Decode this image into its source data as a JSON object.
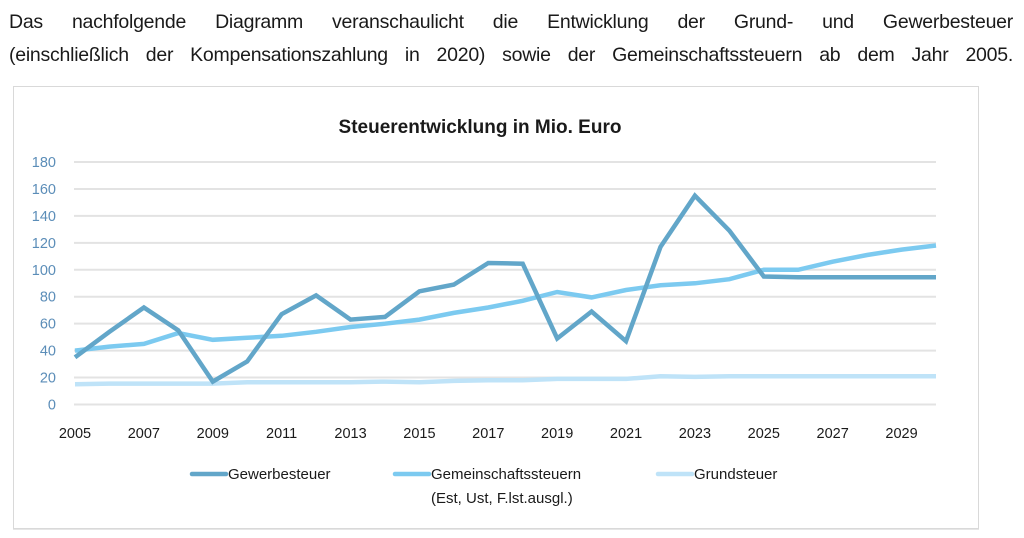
{
  "intro": {
    "line1": "Das nachfolgende Diagramm veranschaulicht die Entwicklung der Grund- und Gewerbesteuer",
    "line2": "(einschließlich der Kompensationszahlung in 2020) sowie der Gemeinschaftssteuern ab dem Jahr 2005."
  },
  "chart_data": {
    "type": "line",
    "title": "Steuerentwicklung in Mio. Euro",
    "xlabel": "",
    "ylabel": "",
    "ylim": [
      0,
      180
    ],
    "yticks": [
      0,
      20,
      40,
      60,
      80,
      100,
      120,
      140,
      160,
      180
    ],
    "xlim": [
      2005,
      2030
    ],
    "xtick_labels": [
      "2005",
      "2007",
      "2009",
      "2011",
      "2013",
      "2015",
      "2017",
      "2019",
      "2021",
      "2023",
      "2025",
      "2027",
      "2029"
    ],
    "grid": true,
    "legend_position": "bottom",
    "x": [
      2005,
      2006,
      2007,
      2008,
      2009,
      2010,
      2011,
      2012,
      2013,
      2014,
      2015,
      2016,
      2017,
      2018,
      2019,
      2020,
      2021,
      2022,
      2023,
      2024,
      2025,
      2026,
      2027,
      2028,
      2029,
      2030
    ],
    "series": [
      {
        "name": "Gewerbesteuer",
        "legend_lines": [
          "Gewerbesteuer"
        ],
        "color": "#62a6c9",
        "values": [
          35,
          54,
          72,
          55,
          17,
          32,
          67,
          81,
          63,
          65,
          84,
          89,
          105,
          104.5,
          49,
          69,
          47,
          117,
          155,
          129,
          95,
          94.5,
          94.5,
          94.5,
          94.5,
          94.5
        ]
      },
      {
        "name": "Gemeinschaftssteuern (Est, Ust, F.lst.ausgl.)",
        "legend_lines": [
          "Gemeinschaftssteuern",
          "(Est, Ust, F.lst.ausgl.)"
        ],
        "color": "#7ccaf0",
        "values": [
          40,
          43,
          45,
          53,
          48,
          49.5,
          51,
          54,
          57.5,
          60,
          63,
          68,
          72,
          77,
          83.5,
          79.5,
          85,
          88.5,
          90,
          93,
          100,
          100,
          106,
          111,
          115,
          118
        ]
      },
      {
        "name": "Grundsteuer",
        "legend_lines": [
          "Grundsteuer"
        ],
        "color": "#bfe3f8",
        "values": [
          15,
          15.5,
          15.5,
          15.5,
          15.5,
          16.5,
          16.5,
          16.5,
          16.5,
          17,
          16.5,
          17.5,
          18,
          18,
          19,
          19,
          19,
          21,
          20.5,
          21,
          21,
          21,
          21,
          21,
          21,
          21
        ]
      }
    ]
  }
}
